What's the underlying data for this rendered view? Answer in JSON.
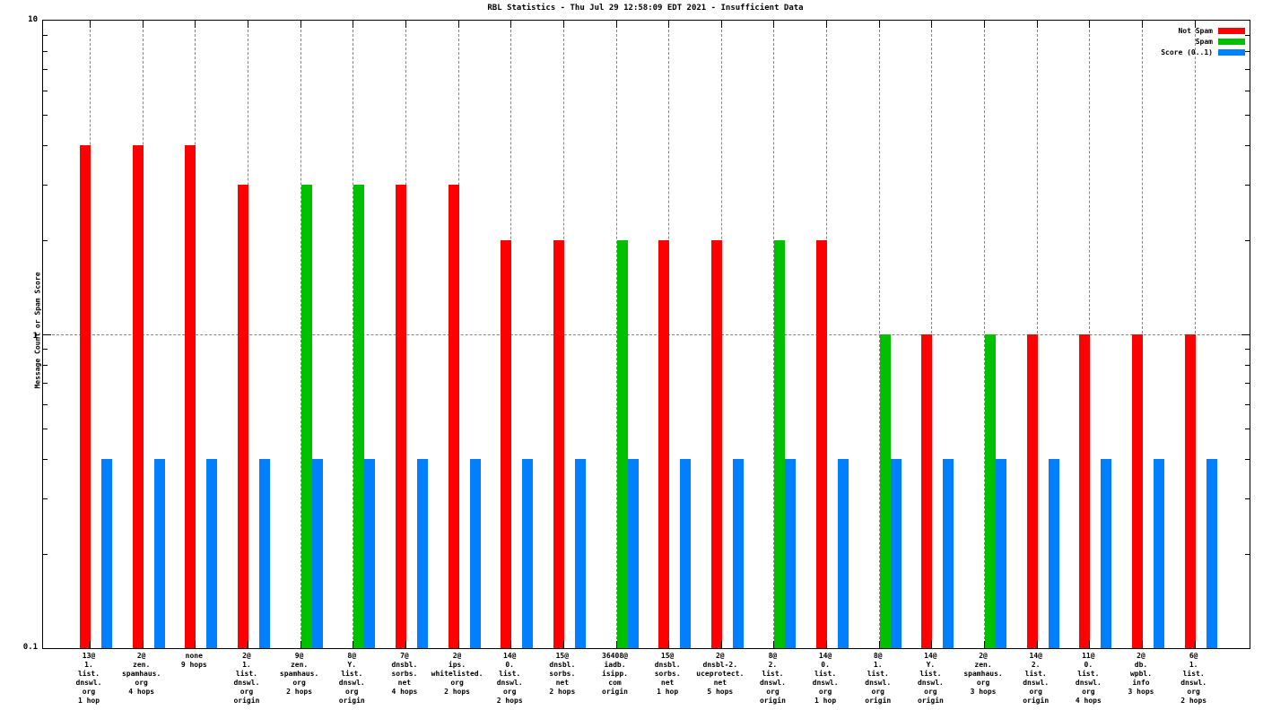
{
  "chart_data": {
    "type": "bar",
    "title": "RBL Statistics - Thu Jul 29 12:58:09 EDT 2021 - Insufficient Data",
    "xlabel": "",
    "ylabel": "Message Count or Spam Score",
    "yscale": "log",
    "ylim": [
      0.1,
      10
    ],
    "ytick_labels": [
      "10",
      "1",
      "0.1"
    ],
    "grid": "dotted-at-each-category-and-y1",
    "legend_position": "top-right",
    "series_meta": {
      "not_spam": {
        "label": "Not Spam",
        "color": "#ff0000"
      },
      "spam": {
        "label": "Spam",
        "color": "#00c000"
      },
      "score": {
        "label": "Score (0..1)",
        "color": "#0080ff"
      }
    },
    "groups": [
      {
        "label_lines": [
          "13@",
          "1.",
          "list.",
          "dnswl.",
          "org",
          "1 hop"
        ],
        "not_spam": 4,
        "spam": null,
        "score": 0.4
      },
      {
        "label_lines": [
          "2@",
          "zen.",
          "spamhaus.",
          "org",
          "4 hops"
        ],
        "not_spam": 4,
        "spam": null,
        "score": 0.4
      },
      {
        "label_lines": [
          "none",
          "9 hops"
        ],
        "not_spam": 4,
        "spam": null,
        "score": 0.4
      },
      {
        "label_lines": [
          "2@",
          "1.",
          "list.",
          "dnswl.",
          "org",
          "origin"
        ],
        "not_spam": 3,
        "spam": null,
        "score": 0.4
      },
      {
        "label_lines": [
          "9@",
          "zen.",
          "spamhaus.",
          "org",
          "2 hops"
        ],
        "not_spam": null,
        "spam": 3,
        "score": 0.4
      },
      {
        "label_lines": [
          "8@",
          "Y.",
          "list.",
          "dnswl.",
          "org",
          "origin"
        ],
        "not_spam": null,
        "spam": 3,
        "score": 0.4
      },
      {
        "label_lines": [
          "7@",
          "dnsbl.",
          "sorbs.",
          "net",
          "4 hops"
        ],
        "not_spam": 3,
        "spam": null,
        "score": 0.4
      },
      {
        "label_lines": [
          "2@",
          "ips.",
          "whitelisted.",
          "org",
          "2 hops"
        ],
        "not_spam": 3,
        "spam": null,
        "score": 0.4
      },
      {
        "label_lines": [
          "14@",
          "0.",
          "list.",
          "dnswl.",
          "org",
          "2 hops"
        ],
        "not_spam": 2,
        "spam": null,
        "score": 0.4
      },
      {
        "label_lines": [
          "15@",
          "dnsbl.",
          "sorbs.",
          "net",
          "2 hops"
        ],
        "not_spam": 2,
        "spam": null,
        "score": 0.4
      },
      {
        "label_lines": [
          "36408@",
          "iadb.",
          "isipp.",
          "com",
          "origin"
        ],
        "not_spam": null,
        "spam": 2,
        "score": 0.4
      },
      {
        "label_lines": [
          "15@",
          "dnsbl.",
          "sorbs.",
          "net",
          "1 hop"
        ],
        "not_spam": 2,
        "spam": null,
        "score": 0.4
      },
      {
        "label_lines": [
          "2@",
          "dnsbl-2.",
          "uceprotect.",
          "net",
          "5 hops"
        ],
        "not_spam": 2,
        "spam": null,
        "score": 0.4
      },
      {
        "label_lines": [
          "8@",
          "2.",
          "list.",
          "dnswl.",
          "org",
          "origin"
        ],
        "not_spam": null,
        "spam": 2,
        "score": 0.4
      },
      {
        "label_lines": [
          "14@",
          "0.",
          "list.",
          "dnswl.",
          "org",
          "1 hop"
        ],
        "not_spam": 2,
        "spam": null,
        "score": 0.4
      },
      {
        "label_lines": [
          "8@",
          "1.",
          "list.",
          "dnswl.",
          "org",
          "origin"
        ],
        "not_spam": null,
        "spam": 1,
        "score": 0.4
      },
      {
        "label_lines": [
          "14@",
          "Y.",
          "list.",
          "dnswl.",
          "org",
          "origin"
        ],
        "not_spam": 1,
        "spam": null,
        "score": 0.4
      },
      {
        "label_lines": [
          "2@",
          "zen.",
          "spamhaus.",
          "org",
          "3 hops"
        ],
        "not_spam": null,
        "spam": 1,
        "score": 0.4
      },
      {
        "label_lines": [
          "14@",
          "2.",
          "list.",
          "dnswl.",
          "org",
          "origin"
        ],
        "not_spam": 1,
        "spam": null,
        "score": 0.4
      },
      {
        "label_lines": [
          "11@",
          "0.",
          "list.",
          "dnswl.",
          "org",
          "4 hops"
        ],
        "not_spam": 1,
        "spam": null,
        "score": 0.4
      },
      {
        "label_lines": [
          "2@",
          "db.",
          "wpbl.",
          "info",
          "3 hops"
        ],
        "not_spam": 1,
        "spam": null,
        "score": 0.4
      },
      {
        "label_lines": [
          "6@",
          "1.",
          "list.",
          "dnswl.",
          "org",
          "2 hops"
        ],
        "not_spam": 1,
        "spam": null,
        "score": 0.4
      }
    ]
  }
}
